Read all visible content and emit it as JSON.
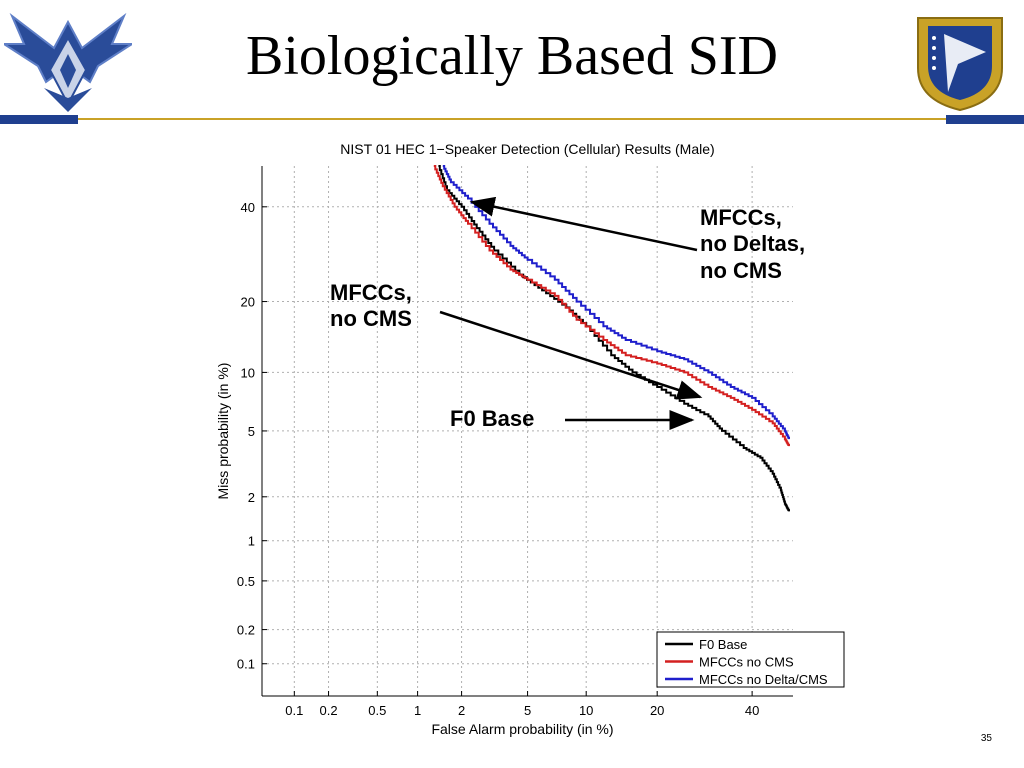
{
  "slide": {
    "title": "Biologically Based SID",
    "page_number": "35"
  },
  "colors": {
    "navy": "#1f3f8f",
    "gold": "#c9a227"
  },
  "logos": {
    "left": "us-air-force-wings-icon",
    "right": "air-force-research-laboratory-seal-icon"
  },
  "chart_data": {
    "type": "line",
    "title": "NIST 01 HEC 1−Speaker Detection (Cellular) Results (Male)",
    "xlabel": "False Alarm probability (in %)",
    "ylabel": "Miss probability (in %)",
    "x_scale": "normal-deviate (DET)",
    "y_scale": "normal-deviate (DET)",
    "x_ticks": [
      "0.1",
      "0.2",
      "0.5",
      "1",
      "2",
      "5",
      "10",
      "20",
      "40"
    ],
    "y_ticks": [
      "0.1",
      "0.2",
      "0.5",
      "1",
      "2",
      "5",
      "10",
      "20",
      "40"
    ],
    "xlim": [
      0.05,
      50
    ],
    "ylim": [
      0.05,
      50
    ],
    "grid": true,
    "legend": "bottom-right",
    "series": [
      {
        "name": "F0 Base",
        "color": "#000000",
        "points": [
          [
            1.4,
            50
          ],
          [
            1.6,
            44
          ],
          [
            2.0,
            40
          ],
          [
            2.5,
            35
          ],
          [
            3.2,
            30
          ],
          [
            4.5,
            25
          ],
          [
            6,
            22
          ],
          [
            8,
            19
          ],
          [
            10,
            16
          ],
          [
            13,
            12
          ],
          [
            16,
            10
          ],
          [
            20,
            8.5
          ],
          [
            25,
            7
          ],
          [
            30,
            6
          ],
          [
            33,
            5
          ],
          [
            38,
            4
          ],
          [
            42,
            3.5
          ],
          [
            45,
            2.8
          ],
          [
            47,
            2.2
          ],
          [
            48,
            1.8
          ],
          [
            49,
            1.6
          ]
        ]
      },
      {
        "name": "MFCCs no CMS",
        "color": "#d42020",
        "points": [
          [
            1.3,
            50
          ],
          [
            1.5,
            45
          ],
          [
            1.8,
            40
          ],
          [
            2.2,
            36
          ],
          [
            3,
            30
          ],
          [
            4,
            26
          ],
          [
            5,
            24
          ],
          [
            7,
            21
          ],
          [
            9,
            17
          ],
          [
            12,
            14
          ],
          [
            15,
            12
          ],
          [
            20,
            11
          ],
          [
            25,
            10
          ],
          [
            30,
            8.5
          ],
          [
            35,
            7.5
          ],
          [
            40,
            6.5
          ],
          [
            45,
            5.5
          ],
          [
            48,
            4.5
          ],
          [
            49,
            4.1
          ]
        ]
      },
      {
        "name": "MFCCs no Delta/CMS",
        "color": "#1f1fcc",
        "points": [
          [
            1.5,
            50
          ],
          [
            1.7,
            46
          ],
          [
            2.2,
            42
          ],
          [
            3,
            36
          ],
          [
            4,
            31
          ],
          [
            5,
            28
          ],
          [
            7,
            24
          ],
          [
            9,
            20
          ],
          [
            12,
            16
          ],
          [
            15,
            14
          ],
          [
            20,
            12.5
          ],
          [
            25,
            11.5
          ],
          [
            30,
            10
          ],
          [
            35,
            8.5
          ],
          [
            40,
            7.5
          ],
          [
            45,
            6
          ],
          [
            48,
            5
          ],
          [
            49,
            4.5
          ]
        ]
      }
    ],
    "annotations": [
      {
        "lines": [
          "MFCCs,",
          "no Deltas,",
          "no CMS"
        ],
        "target_series": "MFCCs no Delta/CMS"
      },
      {
        "lines": [
          "MFCCs,",
          "no CMS"
        ],
        "target_series": "MFCCs no CMS"
      },
      {
        "lines": [
          "F0 Base"
        ],
        "target_series": "F0 Base"
      }
    ]
  }
}
